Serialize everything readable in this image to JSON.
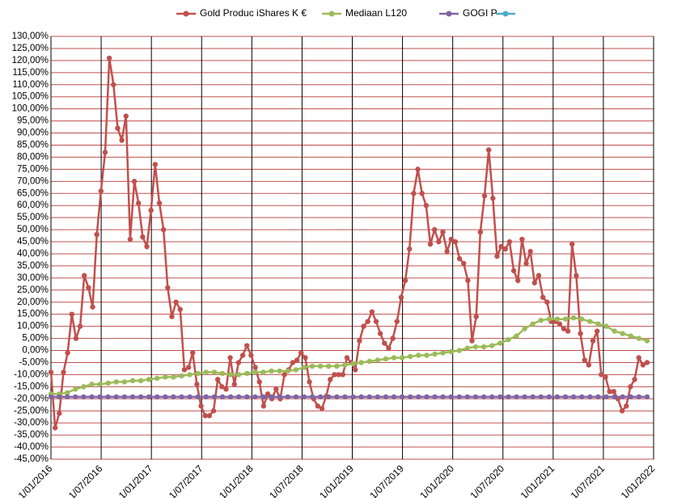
{
  "chart_data": {
    "type": "line",
    "xticks": [
      "1/01/2016",
      "1/07/2016",
      "1/01/2017",
      "1/07/2017",
      "1/01/2018",
      "1/07/2018",
      "1/01/2019",
      "1/07/2019",
      "1/01/2020",
      "1/07/2020",
      "1/01/2021",
      "1/07/2021",
      "1/01/2022"
    ],
    "ylim": [
      -45,
      130
    ],
    "yticks": [
      {
        "value": 130,
        "label": "130,00%"
      },
      {
        "value": 125,
        "label": "125,00%"
      },
      {
        "value": 120,
        "label": "120,00%"
      },
      {
        "value": 115,
        "label": "115,00%"
      },
      {
        "value": 110,
        "label": "110,00%"
      },
      {
        "value": 105,
        "label": "105,00%"
      },
      {
        "value": 100,
        "label": "100,00%"
      },
      {
        "value": 95,
        "label": "95,00%"
      },
      {
        "value": 90,
        "label": "90,00%"
      },
      {
        "value": 85,
        "label": "85,00%"
      },
      {
        "value": 80,
        "label": "80,00%"
      },
      {
        "value": 75,
        "label": "75,00%"
      },
      {
        "value": 70,
        "label": "70,00%"
      },
      {
        "value": 65,
        "label": "65,00%"
      },
      {
        "value": 60,
        "label": "60,00%"
      },
      {
        "value": 55,
        "label": "55,00%"
      },
      {
        "value": 50,
        "label": "50,00%"
      },
      {
        "value": 45,
        "label": "45,00%"
      },
      {
        "value": 40,
        "label": "40,00%"
      },
      {
        "value": 35,
        "label": "35,00%"
      },
      {
        "value": 30,
        "label": "30,00%"
      },
      {
        "value": 25,
        "label": "25,00%"
      },
      {
        "value": 20,
        "label": "20,00%"
      },
      {
        "value": 15,
        "label": "15,00%"
      },
      {
        "value": 10,
        "label": "10,00%"
      },
      {
        "value": 5,
        "label": "5,00%"
      },
      {
        "value": 0,
        "label": "0,00%"
      },
      {
        "value": -5,
        "label": "-5,00%"
      },
      {
        "value": -10,
        "label": "-10,00%"
      },
      {
        "value": -15,
        "label": "-15,00%"
      },
      {
        "value": -20,
        "label": "-20,00%"
      },
      {
        "value": -25,
        "label": "-25,00%"
      },
      {
        "value": -30,
        "label": "-30,00%"
      },
      {
        "value": -35,
        "label": "-35,00%"
      },
      {
        "value": -40,
        "label": "-40,00%"
      },
      {
        "value": -45,
        "label": "-45,00%"
      }
    ],
    "grid": true,
    "legend": "top",
    "series": [
      {
        "name": "Gold Produc iShares K €",
        "color": "#c0504d",
        "values": [
          -9,
          -32,
          -26,
          -9,
          -1,
          15,
          5,
          10,
          31,
          26,
          18,
          48,
          66,
          82,
          121,
          110,
          92,
          87,
          97,
          46,
          70,
          61,
          47,
          43,
          58,
          77,
          61,
          50,
          26,
          14,
          20,
          17,
          -8,
          -7,
          -1,
          -14,
          -23,
          -27,
          -27,
          -25,
          -12,
          -15,
          -16,
          -3,
          -14,
          -5,
          -2,
          2,
          -2,
          -7,
          -13,
          -23,
          -18,
          -20,
          -16,
          -20,
          -10,
          -8,
          -5,
          -4,
          -1,
          -3,
          -13,
          -20,
          -23,
          -24,
          -19,
          -12,
          -10,
          -10,
          -10,
          -3,
          -5,
          -8,
          4,
          10,
          12,
          16,
          12,
          7,
          3,
          1,
          5,
          12,
          22,
          29,
          42,
          65,
          75,
          65,
          60,
          44,
          50,
          45,
          49,
          41,
          46,
          45,
          38,
          36,
          29,
          4,
          14,
          49,
          64,
          83,
          63,
          39,
          43,
          42,
          45,
          33,
          29,
          46,
          36,
          41,
          28,
          31,
          22,
          20,
          12,
          12,
          11,
          9,
          8,
          44,
          31,
          7,
          -4,
          -6,
          4,
          8,
          -10,
          -11,
          -17,
          -17,
          -20,
          -25,
          -23,
          -15,
          -12,
          -3,
          -6,
          -5
        ]
      },
      {
        "name": "Mediaan L120",
        "color": "#9bbb59",
        "values": [
          -18,
          -18,
          -17.5,
          -16,
          -15,
          -14,
          -14,
          -13.5,
          -13,
          -13,
          -12.5,
          -12.5,
          -12,
          -11.5,
          -11,
          -11,
          -10.5,
          -10,
          -9.5,
          -9,
          -9,
          -9.5,
          -10,
          -10,
          -9.5,
          -9,
          -9,
          -8.5,
          -8.5,
          -8.5,
          -8,
          -7,
          -6.5,
          -6.5,
          -6.5,
          -6.5,
          -6,
          -5.5,
          -5,
          -4.5,
          -4,
          -3.5,
          -3,
          -3,
          -2.5,
          -2,
          -2,
          -1.5,
          -1,
          -0.5,
          0,
          1,
          1.5,
          1.5,
          2,
          3,
          4.5,
          6,
          9,
          11,
          12.5,
          13,
          13,
          13,
          13.5,
          13,
          12,
          11,
          10,
          8,
          7,
          6,
          5,
          4
        ]
      },
      {
        "name": "GOGI P",
        "color": "#8064a2",
        "values": [
          -19.2,
          -19.2,
          -19.2,
          -19.2,
          -19.2,
          -19.2,
          -19.2,
          -19.2,
          -19.2,
          -19.2,
          -19.2,
          -19.2,
          -19.2,
          -19.2,
          -19.2,
          -19.2,
          -19.2,
          -19.2,
          -19.2,
          -19.2,
          -19.2,
          -19.2,
          -19.2,
          -19.2,
          -19.2,
          -19.2,
          -19.2,
          -19.2,
          -19.2,
          -19.2,
          -19.2,
          -19.2,
          -19.2,
          -19.2,
          -19.2,
          -19.2,
          -19.2,
          -19.2,
          -19.2,
          -19.2,
          -19.2,
          -19.2,
          -19.2,
          -19.2,
          -19.2,
          -19.2,
          -19.2,
          -19.2,
          -19.2,
          -19.2,
          -19.2,
          -19.2,
          -19.2,
          -19.2,
          -19.2,
          -19.2,
          -19.2,
          -19.2,
          -19.2,
          -19.2,
          -19.2,
          -19.2,
          -19.2,
          -19.2,
          -19.2,
          -19.2,
          -19.2,
          -19.2,
          -19.2,
          -19.2,
          -19.2,
          -19.2,
          -19.2,
          -19.2
        ]
      },
      {
        "color": "#4bacc6",
        "values": []
      }
    ]
  }
}
